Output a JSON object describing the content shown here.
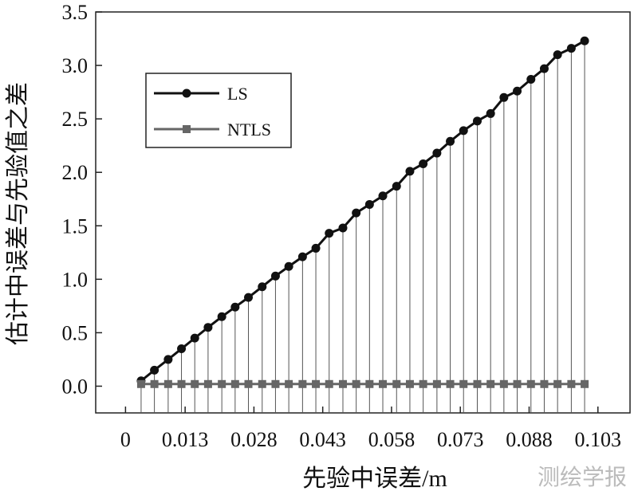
{
  "chart_data": {
    "type": "line",
    "xlabel": "先验中误差/m",
    "ylabel": "估计中误差与先验值之差",
    "watermark": "测绘学报",
    "x": [
      0.0034,
      0.0063,
      0.0093,
      0.0122,
      0.0151,
      0.018,
      0.021,
      0.0239,
      0.0268,
      0.0298,
      0.0327,
      0.0356,
      0.0386,
      0.0415,
      0.0444,
      0.0474,
      0.0503,
      0.0532,
      0.0561,
      0.0591,
      0.062,
      0.0649,
      0.0679,
      0.0708,
      0.0737,
      0.0767,
      0.0796,
      0.0825,
      0.0854,
      0.0884,
      0.0913,
      0.0942,
      0.0972,
      0.1001
    ],
    "series": [
      {
        "name": "LS",
        "color": "#111111",
        "marker": "circle",
        "values": [
          0.05,
          0.15,
          0.25,
          0.35,
          0.45,
          0.55,
          0.65,
          0.74,
          0.83,
          0.93,
          1.03,
          1.12,
          1.21,
          1.29,
          1.43,
          1.48,
          1.62,
          1.7,
          1.78,
          1.87,
          2.01,
          2.08,
          2.18,
          2.29,
          2.39,
          2.48,
          2.55,
          2.7,
          2.76,
          2.87,
          2.97,
          3.1,
          3.16,
          3.23
        ]
      },
      {
        "name": "NTLS",
        "color": "#666666",
        "marker": "square",
        "values": [
          0.02,
          0.02,
          0.02,
          0.02,
          0.02,
          0.02,
          0.02,
          0.02,
          0.02,
          0.02,
          0.02,
          0.02,
          0.02,
          0.02,
          0.02,
          0.02,
          0.02,
          0.02,
          0.02,
          0.02,
          0.02,
          0.02,
          0.02,
          0.02,
          0.02,
          0.02,
          0.02,
          0.02,
          0.02,
          0.02,
          0.02,
          0.02,
          0.02,
          0.02
        ]
      }
    ],
    "xlim": [
      -0.0065,
      0.11
    ],
    "ylim": [
      -0.25,
      3.5
    ],
    "xticks": [
      0,
      0.013,
      0.028,
      0.043,
      0.058,
      0.073,
      0.088,
      0.103
    ],
    "yticks": [
      {
        "value": 0,
        "label": "0.0"
      },
      0.5,
      {
        "value": 1,
        "label": "1.0"
      },
      1.5,
      {
        "value": 2,
        "label": "2.0"
      },
      2.5,
      {
        "value": 3,
        "label": "3.0"
      },
      3.5
    ],
    "legend": "upper left"
  }
}
